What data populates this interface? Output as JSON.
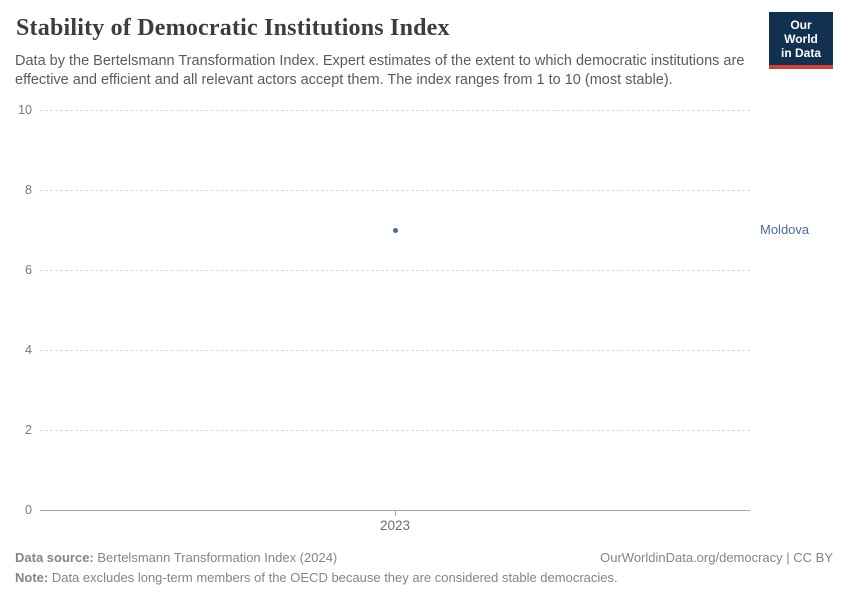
{
  "header": {
    "title": "Stability of Democratic Institutions Index",
    "subtitle": "Data by the Bertelsmann Transformation Index. Expert estimates of the extent to which democratic institutions are effective and efficient and all relevant actors accept them. The index ranges from 1 to 10 (most stable).",
    "logo": {
      "line1": "Our World",
      "line2": "in Data",
      "bg_color": "#12304f",
      "bar_color": "#d63e32"
    }
  },
  "chart_data": {
    "type": "scatter",
    "title": "Stability of Democratic Institutions Index",
    "xlabel": "",
    "ylabel": "",
    "x": [
      2023
    ],
    "x_tick_labels": [
      "2023"
    ],
    "y_ticks": [
      0,
      2,
      4,
      6,
      8,
      10
    ],
    "ylim": [
      0,
      10
    ],
    "grid": "horizontal-dashed",
    "legend_position": "right-of-plot",
    "series": [
      {
        "name": "Moldova",
        "color": "#4c6a9c",
        "values": [
          7
        ]
      }
    ],
    "colors": {
      "gridline": "#dcdcdc",
      "axis_line": "#a5a5a5",
      "tick_label": "#7a7a7a"
    }
  },
  "footer": {
    "data_source_label": "Data source:",
    "data_source_text": " Bertelsmann Transformation Index (2024)",
    "link": "OurWorldinData.org/democracy | CC BY",
    "note_label": "Note:",
    "note_text": " Data excludes long-term members of the OECD because they are considered stable democracies."
  }
}
